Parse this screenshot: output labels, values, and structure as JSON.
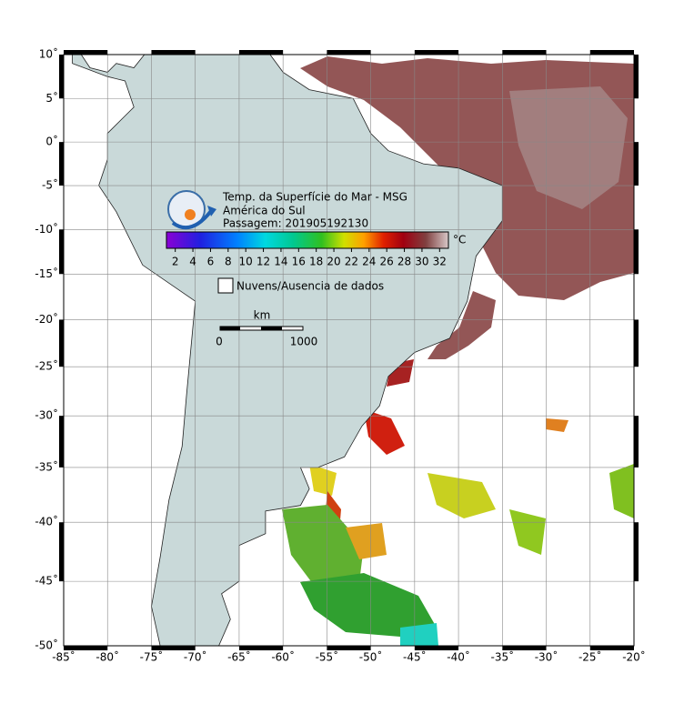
{
  "title_lines": [
    "Temp. da Superfície do Mar - MSG",
    "América do Sul",
    "Passagem: 201905192130"
  ],
  "colorbar": {
    "unit": "°C",
    "ticks": [
      2,
      4,
      6,
      8,
      10,
      12,
      14,
      16,
      18,
      20,
      22,
      24,
      26,
      28,
      30,
      32
    ]
  },
  "legend": "Nuvens/Ausencia de dados",
  "scale": {
    "unit": "km",
    "ticks": [
      0,
      1000
    ]
  },
  "axes": {
    "lon_ticks": [
      {
        "value": -85,
        "label": "-85˚"
      },
      {
        "value": -80,
        "label": "-80˚"
      },
      {
        "value": -75,
        "label": "-75˚"
      },
      {
        "value": -70,
        "label": "-70˚"
      },
      {
        "value": -65,
        "label": "-65˚"
      },
      {
        "value": -60,
        "label": "-60˚"
      },
      {
        "value": -55,
        "label": "-55˚"
      },
      {
        "value": -50,
        "label": "-50˚"
      },
      {
        "value": -45,
        "label": "-45˚"
      },
      {
        "value": -40,
        "label": "-40˚"
      },
      {
        "value": -35,
        "label": "-35˚"
      },
      {
        "value": -30,
        "label": "-30˚"
      },
      {
        "value": -25,
        "label": "-25˚"
      },
      {
        "value": -20,
        "label": "-20˚"
      }
    ],
    "lat_ticks": [
      {
        "value": 10,
        "label": "10˚"
      },
      {
        "value": 5,
        "label": "5˚"
      },
      {
        "value": 0,
        "label": "0˚"
      },
      {
        "value": -5,
        "label": "-5˚"
      },
      {
        "value": -10,
        "label": "-10˚"
      },
      {
        "value": -15,
        "label": "-15˚"
      },
      {
        "value": -20,
        "label": "-20˚"
      },
      {
        "value": -25,
        "label": "-25˚"
      },
      {
        "value": -30,
        "label": "-30˚"
      },
      {
        "value": -35,
        "label": "-35˚"
      },
      {
        "value": -40,
        "label": "-40˚"
      },
      {
        "value": -45,
        "label": "-45˚"
      },
      {
        "value": -50,
        "label": "-50˚"
      }
    ]
  }
}
